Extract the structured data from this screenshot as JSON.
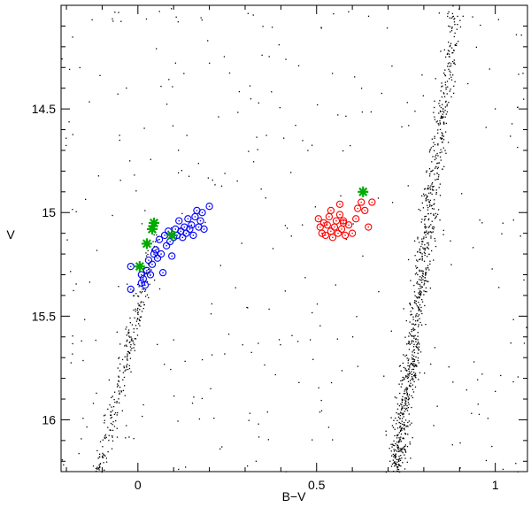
{
  "chart_data": {
    "type": "scatter",
    "xlabel": "B−V",
    "ylabel": "V",
    "xlim": [
      -0.215,
      1.09
    ],
    "ylim": [
      14.0,
      16.25
    ],
    "y_inverted": true,
    "grid": false,
    "x_ticks": [
      {
        "value": 0,
        "label": "0"
      },
      {
        "value": 0.5,
        "label": "0.5"
      },
      {
        "value": 1,
        "label": "1"
      }
    ],
    "y_ticks": [
      {
        "value": 14.5,
        "label": "14.5"
      },
      {
        "value": 15,
        "label": "15"
      },
      {
        "value": 15.5,
        "label": "15.5"
      },
      {
        "value": 16,
        "label": "16"
      }
    ],
    "x_minor_step": 0.1,
    "y_minor_step": 0.1,
    "field_stars_approx_count": 1500,
    "series": [
      {
        "marker": "open-circle",
        "color": "#0000ff",
        "points": [
          [
            -0.02,
            15.26
          ],
          [
            -0.02,
            15.37
          ],
          [
            0.01,
            15.3
          ],
          [
            0.01,
            15.34
          ],
          [
            0.015,
            15.32
          ],
          [
            0.025,
            15.28
          ],
          [
            0.03,
            15.23
          ],
          [
            0.035,
            15.3
          ],
          [
            0.045,
            15.2
          ],
          [
            0.05,
            15.18
          ],
          [
            0.055,
            15.22
          ],
          [
            0.06,
            15.13
          ],
          [
            0.065,
            15.2
          ],
          [
            0.07,
            15.29
          ],
          [
            0.075,
            15.11
          ],
          [
            0.08,
            15.16
          ],
          [
            0.085,
            15.09
          ],
          [
            0.09,
            15.14
          ],
          [
            0.095,
            15.21
          ],
          [
            0.1,
            15.12
          ],
          [
            0.105,
            15.08
          ],
          [
            0.11,
            15.11
          ],
          [
            0.115,
            15.04
          ],
          [
            0.12,
            15.09
          ],
          [
            0.125,
            15.12
          ],
          [
            0.13,
            15.07
          ],
          [
            0.135,
            15.1
          ],
          [
            0.14,
            15.03
          ],
          [
            0.145,
            15.08
          ],
          [
            0.15,
            15.06
          ],
          [
            0.155,
            15.11
          ],
          [
            0.16,
            15.02
          ],
          [
            0.165,
            14.99
          ],
          [
            0.17,
            15.07
          ],
          [
            0.175,
            15.04
          ],
          [
            0.18,
            15.0
          ],
          [
            0.185,
            15.08
          ],
          [
            0.2,
            14.97
          ],
          [
            0.02,
            15.35
          ],
          [
            0.04,
            15.25
          ]
        ]
      },
      {
        "marker": "open-circle",
        "color": "#ff0000",
        "points": [
          [
            0.505,
            15.03
          ],
          [
            0.51,
            15.07
          ],
          [
            0.515,
            15.1
          ],
          [
            0.52,
            15.05
          ],
          [
            0.525,
            15.11
          ],
          [
            0.53,
            15.06
          ],
          [
            0.535,
            15.02
          ],
          [
            0.54,
            15.09
          ],
          [
            0.545,
            15.12
          ],
          [
            0.55,
            15.07
          ],
          [
            0.555,
            15.04
          ],
          [
            0.56,
            15.1
          ],
          [
            0.565,
            15.01
          ],
          [
            0.57,
            15.08
          ],
          [
            0.575,
            15.05
          ],
          [
            0.58,
            15.11
          ],
          [
            0.59,
            15.06
          ],
          [
            0.61,
            15.03
          ],
          [
            0.615,
            14.98
          ],
          [
            0.625,
            14.95
          ],
          [
            0.635,
            14.99
          ],
          [
            0.645,
            15.07
          ],
          [
            0.655,
            14.95
          ],
          [
            0.54,
            14.99
          ],
          [
            0.575,
            15.04
          ],
          [
            0.565,
            14.96
          ],
          [
            0.6,
            15.1
          ]
        ]
      },
      {
        "marker": "asterisk",
        "color": "#00aa00",
        "points": [
          [
            0.045,
            15.05
          ],
          [
            0.04,
            15.08
          ],
          [
            0.025,
            15.15
          ],
          [
            0.095,
            15.11
          ],
          [
            0.005,
            15.26
          ],
          [
            0.63,
            14.9
          ]
        ]
      }
    ]
  }
}
